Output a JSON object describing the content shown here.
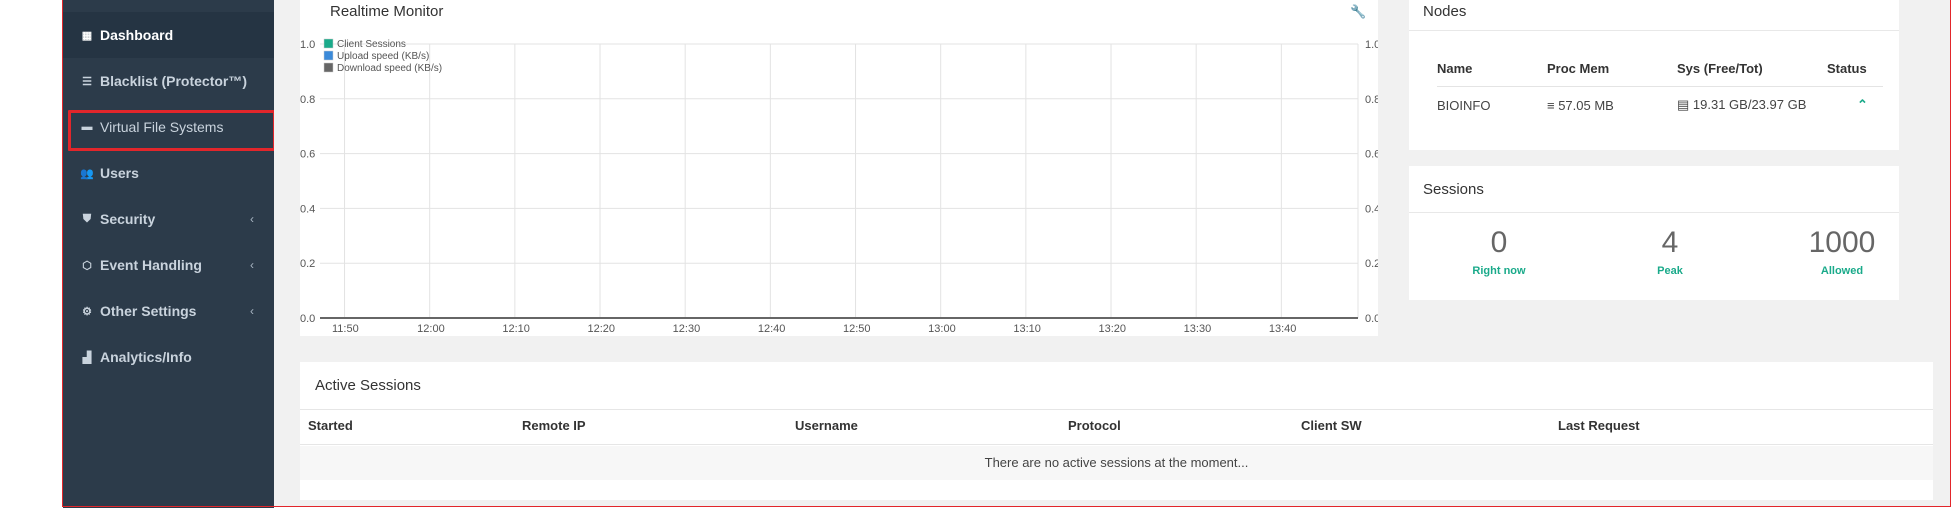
{
  "sidebar": {
    "items": [
      {
        "label": "Dashboard",
        "icon": "dashboard-icon",
        "active": true
      },
      {
        "label": "Blacklist (Protector™)",
        "icon": "list-icon"
      },
      {
        "label": "Virtual File Systems",
        "icon": "folder-icon"
      },
      {
        "label": "Users",
        "icon": "users-icon"
      },
      {
        "label": "Security",
        "icon": "shield-icon",
        "has_submenu": true
      },
      {
        "label": "Event Handling",
        "icon": "cube-icon",
        "has_submenu": true
      },
      {
        "label": "Other Settings",
        "icon": "gears-icon",
        "has_submenu": true
      },
      {
        "label": "Analytics/Info",
        "icon": "chart-icon"
      }
    ],
    "highlighted_item": "Virtual File Systems"
  },
  "realtime": {
    "title": "Realtime Monitor",
    "chart_data": {
      "type": "line",
      "x": [
        "11:50",
        "12:00",
        "12:10",
        "12:20",
        "12:30",
        "12:40",
        "12:50",
        "13:00",
        "13:10",
        "13:20",
        "13:30",
        "13:40"
      ],
      "series": [
        {
          "name": "Client Sessions",
          "color": "#1aaa8a",
          "values": [
            0,
            0,
            0,
            0,
            0,
            0,
            0,
            0,
            0,
            0,
            0,
            0
          ]
        },
        {
          "name": "Upload speed (KB/s)",
          "color": "#3b8ad9",
          "values": [
            0,
            0,
            0,
            0,
            0,
            0,
            0,
            0,
            0,
            0,
            0,
            0
          ]
        },
        {
          "name": "Download speed (KB/s)",
          "color": "#666666",
          "values": [
            0,
            0,
            0,
            0,
            0,
            0,
            0,
            0,
            0,
            0,
            0,
            0
          ]
        }
      ],
      "ylim": [
        0,
        1.0
      ],
      "yticks": [
        "0.0",
        "0.2",
        "0.4",
        "0.6",
        "0.8",
        "1.0"
      ],
      "grid": true,
      "legend": "top-left"
    }
  },
  "nodes": {
    "title": "Nodes",
    "headers": [
      "Name",
      "Proc Mem",
      "Sys (Free/Tot)",
      "Status"
    ],
    "rows": [
      {
        "name": "BIOINFO",
        "proc_mem": "57.05 MB",
        "sys": "19.31 GB/23.97 GB",
        "status_icon": "chevron-up-icon"
      }
    ]
  },
  "sessions": {
    "title": "Sessions",
    "stats": [
      {
        "value": "0",
        "label": "Right now"
      },
      {
        "value": "4",
        "label": "Peak"
      },
      {
        "value": "1000",
        "label": "Allowed"
      }
    ]
  },
  "active_sessions": {
    "title": "Active Sessions",
    "headers": [
      "Started",
      "Remote IP",
      "Username",
      "Protocol",
      "Client SW",
      "Last Request"
    ],
    "empty_text": "There are no active sessions at the moment..."
  }
}
